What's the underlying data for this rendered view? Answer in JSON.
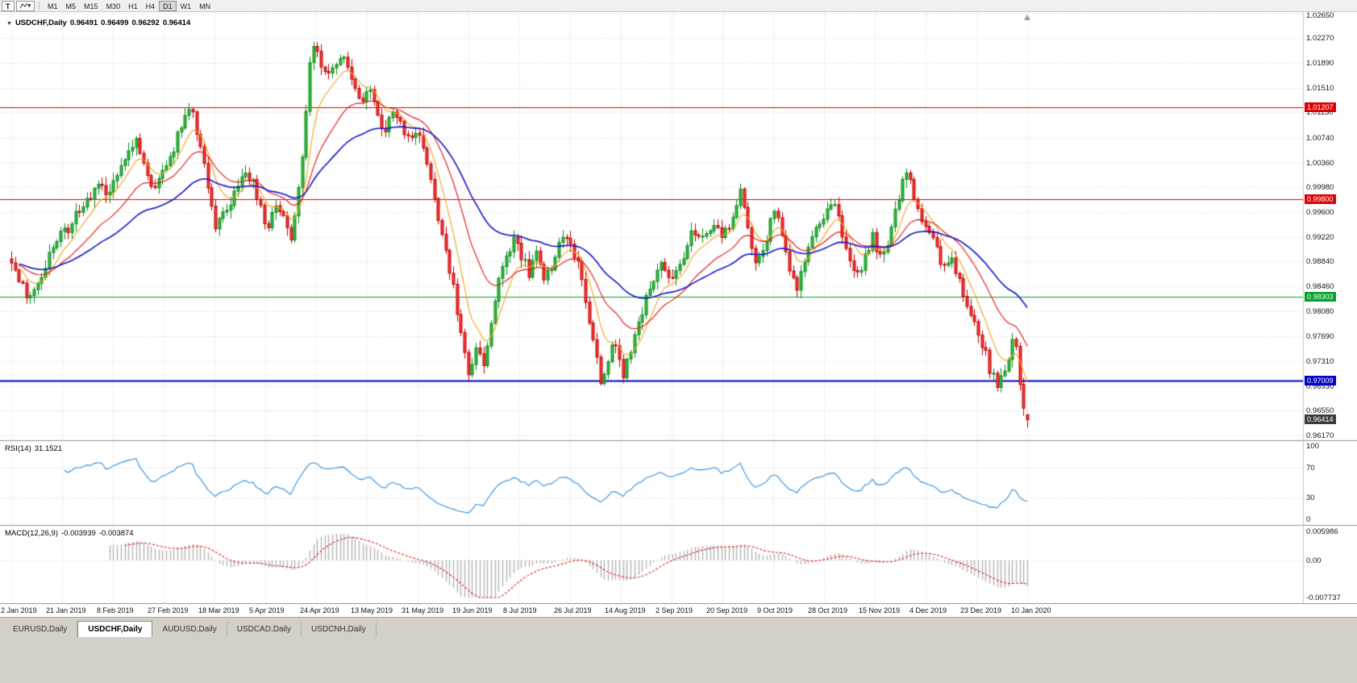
{
  "toolbar": {
    "t_button_label": "T",
    "dropdown_caret": "▾",
    "timeframes": [
      "M1",
      "M5",
      "M15",
      "M30",
      "H1",
      "H4",
      "D1",
      "W1",
      "MN"
    ],
    "active_timeframe": "D1"
  },
  "icons": {
    "ohlc_expand": "▼",
    "scroll_marker": "▲"
  },
  "chart": {
    "symbol_title": "USDCHF,Daily",
    "ohlc": {
      "open": "0.96491",
      "high": "0.96499",
      "low": "0.96292",
      "close": "0.96414"
    },
    "y_axis_ticks": [
      "1.02650",
      "1.02270",
      "1.01890",
      "1.01510",
      "1.01130",
      "1.00740",
      "1.00360",
      "0.99980",
      "0.99600",
      "0.99220",
      "0.98840",
      "0.98460",
      "0.98080",
      "0.97690",
      "0.97310",
      "0.96930",
      "0.96550",
      "0.96170"
    ],
    "x_axis_labels": [
      "2 Jan 2019",
      "21 Jan 2019",
      "8 Feb 2019",
      "27 Feb 2019",
      "18 Mar 2019",
      "5 Apr 2019",
      "24 Apr 2019",
      "13 May 2019",
      "31 May 2019",
      "19 Jun 2019",
      "8 Jul 2019",
      "26 Jul 2019",
      "14 Aug 2019",
      "2 Sep 2019",
      "20 Sep 2019",
      "9 Oct 2019",
      "28 Oct 2019",
      "15 Nov 2019",
      "4 Dec 2019",
      "23 Dec 2019",
      "10 Jan 2020"
    ],
    "hlines": [
      {
        "value": 1.01207,
        "label": "1.01207",
        "color": "#e00000",
        "width": 1
      },
      {
        "value": 0.998,
        "label": "0.99800",
        "color": "#e00000",
        "width": 1
      },
      {
        "value": 0.98303,
        "label": "0.98303",
        "color": "#00a32e",
        "width": 1
      },
      {
        "value": 0.97009,
        "label": "0.97009",
        "color": "#0000c8",
        "width": 2
      }
    ],
    "current_price": {
      "label": "0.96414",
      "value": 0.96414
    }
  },
  "rsi": {
    "title": "RSI(14)",
    "value_text": "31.1521",
    "axis_labels": [
      "100",
      "70",
      "30",
      "0"
    ]
  },
  "macd": {
    "title": "MACD(12,26,9)",
    "macd_value_text": "-0.003939",
    "signal_value_text": "-0.003874",
    "axis_labels": [
      "0.005986",
      "0.00",
      "-0.007737"
    ]
  },
  "tabs": {
    "items": [
      "EURUSD,Daily",
      "USDCHF,Daily",
      "AUDUSD,Daily",
      "USDCAD,Daily",
      "USDCNH,Daily"
    ],
    "active": "USDCHF,Daily"
  },
  "colors": {
    "candle_up": "#2fbe39",
    "candle_up_border": "#0e8a20",
    "candle_down": "#f23a3a",
    "candle_down_border": "#c40000",
    "rsi_line": "#2f8fdd",
    "macd_hist": "#b4b4b4",
    "macd_signal": "#e02020",
    "grid": "#d8d8d8",
    "separator": "#8f8f8f",
    "current_badge_bg": "#3b3b3b"
  },
  "chart_data": {
    "type": "candlestick",
    "symbol": "USDCHF",
    "timeframe": "Daily",
    "bar_count": 270,
    "date_start": "2 Jan 2019",
    "date_end": "10 Jan 2020",
    "ylim": [
      0.9611,
      1.0267
    ],
    "last_bar": {
      "open": 0.96491,
      "high": 0.96499,
      "low": 0.96292,
      "close": 0.96414
    },
    "horizontal_line_values": [
      1.01207,
      0.998,
      0.98303,
      0.97009
    ],
    "moving_averages": [
      {
        "name": "fast-ma",
        "period": 8,
        "color": "#f2a51a"
      },
      {
        "name": "medium-ma",
        "period": 21,
        "color": "#e31212"
      },
      {
        "name": "slow-ma",
        "period": 45,
        "color": "#1414cc"
      }
    ],
    "indicators": {
      "rsi": {
        "period": 14,
        "current": 31.1521,
        "levels": [
          70,
          30
        ],
        "range": [
          0,
          100
        ]
      },
      "macd": {
        "fast_period": 12,
        "slow_period": 26,
        "signal_period": 9,
        "macd_current": -0.003939,
        "signal_current": -0.003874,
        "scale_max": 0.005986,
        "scale_min": -0.007737
      }
    },
    "close_path_anchors": [
      [
        0,
        0.9885
      ],
      [
        2,
        0.9851
      ],
      [
        4,
        0.9833
      ],
      [
        6,
        0.9845
      ],
      [
        8,
        0.9868
      ],
      [
        11,
        0.9902
      ],
      [
        14,
        0.9928
      ],
      [
        17,
        0.9955
      ],
      [
        20,
        0.9972
      ],
      [
        23,
        1.0008
      ],
      [
        25,
        0.9992
      ],
      [
        28,
        1.0022
      ],
      [
        31,
        1.0058
      ],
      [
        33,
        1.0075
      ],
      [
        35,
        1.004
      ],
      [
        37,
        0.9996
      ],
      [
        39,
        1.0012
      ],
      [
        42,
        1.0042
      ],
      [
        45,
        1.0085
      ],
      [
        47,
        1.0126
      ],
      [
        48,
        1.0108
      ],
      [
        50,
        1.0062
      ],
      [
        52,
        1.0005
      ],
      [
        54,
        0.994
      ],
      [
        56,
        0.9952
      ],
      [
        58,
        0.9975
      ],
      [
        60,
        0.9992
      ],
      [
        62,
        1.002
      ],
      [
        64,
        1.0005
      ],
      [
        66,
        0.9962
      ],
      [
        68,
        0.994
      ],
      [
        70,
        0.9975
      ],
      [
        72,
        0.9948
      ],
      [
        74,
        0.9916
      ],
      [
        76,
        0.999
      ],
      [
        78,
        1.0115
      ],
      [
        79,
        1.019
      ],
      [
        80,
        1.0222
      ],
      [
        81,
        1.0205
      ],
      [
        83,
        1.0168
      ],
      [
        85,
        1.0178
      ],
      [
        87,
        1.0202
      ],
      [
        89,
        1.0188
      ],
      [
        91,
        1.0142
      ],
      [
        93,
        1.0128
      ],
      [
        95,
        1.015
      ],
      [
        97,
        1.0105
      ],
      [
        99,
        1.0088
      ],
      [
        101,
        1.012
      ],
      [
        103,
        1.0092
      ],
      [
        105,
        1.0072
      ],
      [
        107,
        1.0088
      ],
      [
        109,
        1.0052
      ],
      [
        111,
        1.0012
      ],
      [
        113,
        0.9955
      ],
      [
        115,
        0.99
      ],
      [
        117,
        0.9848
      ],
      [
        119,
        0.9775
      ],
      [
        121,
        0.9712
      ],
      [
        123,
        0.9748
      ],
      [
        125,
        0.972
      ],
      [
        127,
        0.9782
      ],
      [
        129,
        0.9852
      ],
      [
        131,
        0.9895
      ],
      [
        133,
        0.992
      ],
      [
        135,
        0.9892
      ],
      [
        137,
        0.9868
      ],
      [
        139,
        0.9896
      ],
      [
        141,
        0.9858
      ],
      [
        143,
        0.9872
      ],
      [
        145,
        0.9912
      ],
      [
        147,
        0.9928
      ],
      [
        149,
        0.9895
      ],
      [
        151,
        0.9858
      ],
      [
        153,
        0.9782
      ],
      [
        155,
        0.9742
      ],
      [
        156,
        0.9705
      ],
      [
        158,
        0.9735
      ],
      [
        160,
        0.976
      ],
      [
        162,
        0.9714
      ],
      [
        164,
        0.9745
      ],
      [
        166,
        0.979
      ],
      [
        168,
        0.9825
      ],
      [
        170,
        0.985
      ],
      [
        172,
        0.9875
      ],
      [
        174,
        0.9855
      ],
      [
        176,
        0.987
      ],
      [
        178,
        0.9895
      ],
      [
        180,
        0.994
      ],
      [
        182,
        0.9915
      ],
      [
        184,
        0.9928
      ],
      [
        186,
        0.9948
      ],
      [
        188,
        0.9922
      ],
      [
        190,
        0.9935
      ],
      [
        192,
        0.9968
      ],
      [
        193,
        0.9998
      ],
      [
        195,
        0.993
      ],
      [
        197,
        0.9875
      ],
      [
        199,
        0.9892
      ],
      [
        201,
        0.9945
      ],
      [
        202,
        0.9965
      ],
      [
        204,
        0.9922
      ],
      [
        206,
        0.9872
      ],
      [
        208,
        0.9848
      ],
      [
        210,
        0.9888
      ],
      [
        212,
        0.9925
      ],
      [
        214,
        0.9945
      ],
      [
        216,
        0.9962
      ],
      [
        218,
        0.9975
      ],
      [
        220,
        0.993
      ],
      [
        222,
        0.9878
      ],
      [
        224,
        0.986
      ],
      [
        226,
        0.9895
      ],
      [
        228,
        0.9922
      ],
      [
        230,
        0.9892
      ],
      [
        232,
        0.9915
      ],
      [
        234,
        0.9958
      ],
      [
        236,
        1.0012
      ],
      [
        237,
        1.0022
      ],
      [
        239,
        0.9988
      ],
      [
        241,
        0.9945
      ],
      [
        243,
        0.9922
      ],
      [
        245,
        0.9905
      ],
      [
        247,
        0.9872
      ],
      [
        249,
        0.9888
      ],
      [
        251,
        0.9855
      ],
      [
        253,
        0.9822
      ],
      [
        255,
        0.9788
      ],
      [
        257,
        0.9758
      ],
      [
        259,
        0.972
      ],
      [
        261,
        0.9692
      ],
      [
        263,
        0.9718
      ],
      [
        264,
        0.9742
      ],
      [
        265,
        0.9758
      ],
      [
        266,
        0.9745
      ],
      [
        267,
        0.9698
      ],
      [
        268,
        0.9655
      ],
      [
        269,
        0.96414
      ]
    ]
  }
}
